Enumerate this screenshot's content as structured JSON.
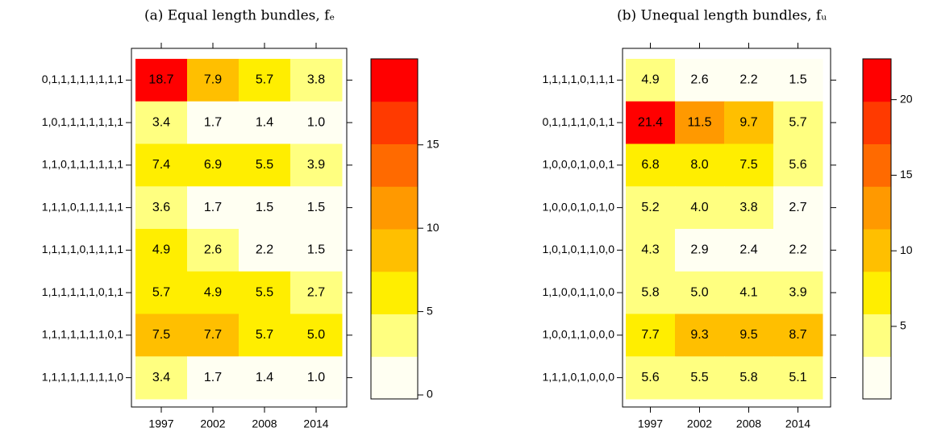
{
  "chart_data": [
    {
      "type": "heatmap",
      "title": "(a) Equal length bundles, fₑ",
      "categories": [
        "1997",
        "2002",
        "2008",
        "2014"
      ],
      "y_categories": [
        "0,1,1,1,1,1,1,1,1",
        "1,0,1,1,1,1,1,1,1",
        "1,1,0,1,1,1,1,1,1",
        "1,1,1,0,1,1,1,1,1",
        "1,1,1,1,0,1,1,1,1",
        "1,1,1,1,1,1,0,1,1",
        "1,1,1,1,1,1,1,0,1",
        "1,1,1,1,1,1,1,1,0"
      ],
      "values": [
        [
          18.7,
          7.9,
          5.7,
          3.8
        ],
        [
          3.4,
          1.7,
          1.4,
          1.0
        ],
        [
          7.4,
          6.9,
          5.5,
          3.9
        ],
        [
          3.6,
          1.7,
          1.5,
          1.5
        ],
        [
          4.9,
          2.6,
          2.2,
          1.5
        ],
        [
          5.7,
          4.9,
          5.5,
          2.7
        ],
        [
          7.5,
          7.7,
          5.7,
          5.0
        ],
        [
          3.4,
          1.7,
          1.4,
          1.0
        ]
      ],
      "value_labels": [
        [
          "18.7",
          "7.9",
          "5.7",
          "3.8"
        ],
        [
          "3.4",
          "1.7",
          "1.4",
          "1.0"
        ],
        [
          "7.4",
          "6.9",
          "5.5",
          "3.9"
        ],
        [
          "3.6",
          "1.7",
          "1.5",
          "1.5"
        ],
        [
          "4.9",
          "2.6",
          "2.2",
          "1.5"
        ],
        [
          "5.7",
          "4.9",
          "5.5",
          "2.7"
        ],
        [
          "7.5",
          "7.7",
          "5.7",
          "5.0"
        ],
        [
          "3.4",
          "1.7",
          "1.4",
          "1.0"
        ]
      ],
      "colorbar": {
        "lim": [
          -0.24,
          20.16
        ],
        "ticks": [
          0,
          5,
          10,
          15
        ],
        "colors": [
          "#fffff2",
          "#ffff80",
          "#ffee00",
          "#ffbf00",
          "#ff9900",
          "#ff6a00",
          "#ff3a00",
          "#ff0000"
        ]
      }
    },
    {
      "type": "heatmap",
      "title": "(b) Unequal length bundles, fᵤ",
      "categories": [
        "1997",
        "2002",
        "2008",
        "2014"
      ],
      "y_categories": [
        "1,1,1,1,0,1,1,1",
        "0,1,1,1,1,0,1,1",
        "1,0,0,0,1,0,0,1",
        "1,0,0,0,1,0,1,0",
        "1,0,1,0,1,1,0,0",
        "1,1,0,0,1,1,0,0",
        "1,0,0,1,1,0,0,0",
        "1,1,1,0,1,0,0,0"
      ],
      "values": [
        [
          4.9,
          2.6,
          2.2,
          1.5
        ],
        [
          21.4,
          11.5,
          9.7,
          5.7
        ],
        [
          6.8,
          8.0,
          7.5,
          5.6
        ],
        [
          5.2,
          4.0,
          3.8,
          2.7
        ],
        [
          4.3,
          2.9,
          2.4,
          2.2
        ],
        [
          5.8,
          5.0,
          4.1,
          3.9
        ],
        [
          7.7,
          9.3,
          9.5,
          8.7
        ],
        [
          5.6,
          5.5,
          5.8,
          5.1
        ]
      ],
      "value_labels": [
        [
          "4.9",
          "2.6",
          "2.2",
          "1.5"
        ],
        [
          "21.4",
          "11.5",
          "9.7",
          "5.7"
        ],
        [
          "6.8",
          "8.0",
          "7.5",
          "5.6"
        ],
        [
          "5.2",
          "4.0",
          "3.8",
          "2.7"
        ],
        [
          "4.3",
          "2.9",
          "2.4",
          "2.2"
        ],
        [
          "5.8",
          "5.0",
          "4.1",
          "3.9"
        ],
        [
          "7.7",
          "9.3",
          "9.5",
          "8.7"
        ],
        [
          "5.6",
          "5.5",
          "5.8",
          "5.1"
        ]
      ],
      "colorbar": {
        "lim": [
          0.2,
          22.7
        ],
        "ticks": [
          5,
          10,
          15,
          20
        ],
        "colors": [
          "#fffff2",
          "#ffff80",
          "#ffee00",
          "#ffbf00",
          "#ff9900",
          "#ff6a00",
          "#ff3a00",
          "#ff0000"
        ]
      }
    }
  ]
}
